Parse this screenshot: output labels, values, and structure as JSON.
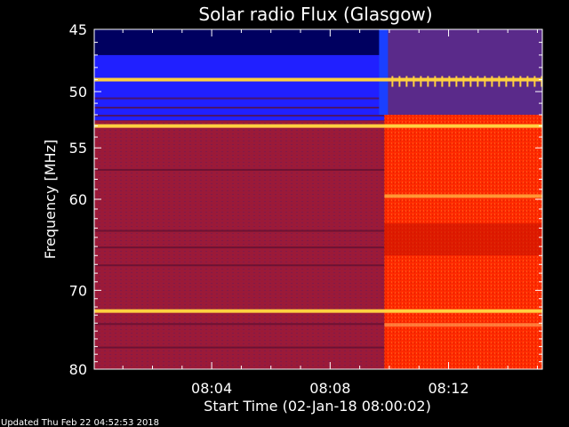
{
  "chart_data": {
    "type": "heatmap",
    "title": "Solar radio Flux (Glasgow)",
    "ylabel": "Frequency [MHz]",
    "xlabel": "Start Time (02-Jan-18 08:00:02)",
    "x_ticks": [
      "08:04",
      "08:08",
      "08:12"
    ],
    "y_ticks": [
      "45",
      "50",
      "55",
      "60",
      "70",
      "80"
    ],
    "y_scale": "log",
    "y_range_mhz": [
      45,
      80
    ],
    "x_range": [
      "08:00:02",
      "08:15:10"
    ],
    "transition_time": "08:09:50",
    "bright_bands_mhz": [
      49,
      53,
      72.5
    ],
    "colormap": [
      "#000060",
      "#2020ff",
      "#5a2a8a",
      "#9a1a3a",
      "#ff2a00",
      "#ffd040"
    ]
  },
  "footer": {
    "text": "Updated Thu Feb 22 04:52:53 2018"
  }
}
